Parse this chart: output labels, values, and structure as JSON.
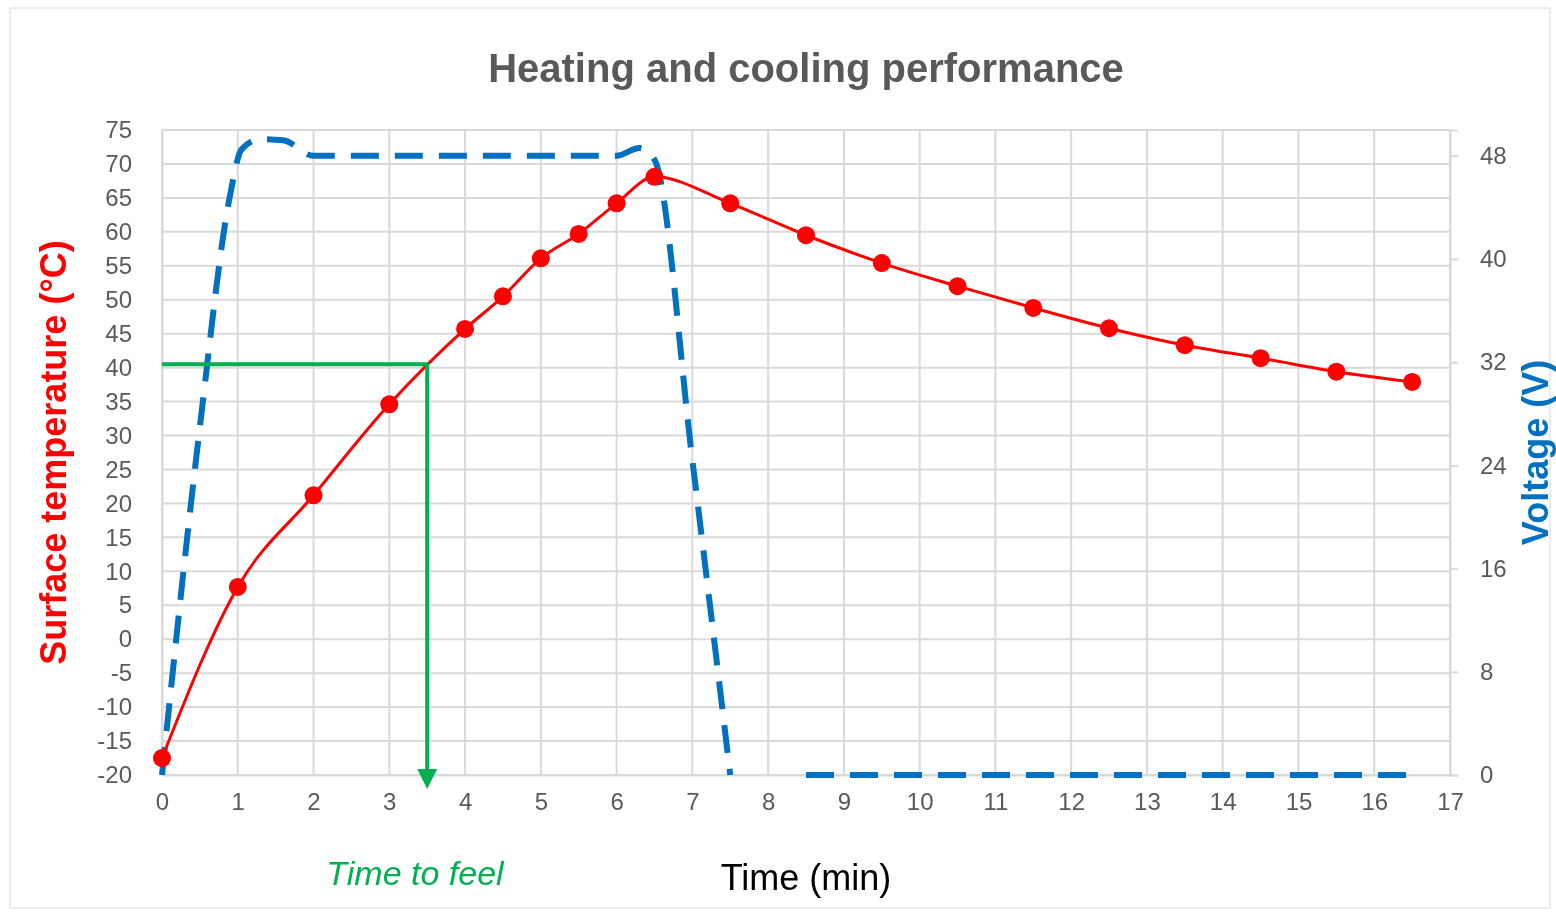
{
  "chart_data": {
    "type": "line",
    "title": "Heating and cooling performance",
    "xlabel": "Time (min)",
    "ylabel": "Surface temperature (°C)",
    "y2label": "Voltage (V)",
    "xlim": [
      0,
      17
    ],
    "xticks": [
      0,
      1,
      2,
      3,
      4,
      5,
      6,
      7,
      8,
      9,
      10,
      11,
      12,
      13,
      14,
      15,
      16,
      17
    ],
    "ylim": [
      -20,
      75
    ],
    "yticks": [
      -20,
      -15,
      -10,
      -5,
      0,
      5,
      10,
      15,
      20,
      25,
      30,
      35,
      40,
      45,
      50,
      55,
      60,
      65,
      70,
      75
    ],
    "y2lim": [
      0,
      50
    ],
    "y2ticks": [
      0,
      8,
      16,
      24,
      32,
      40,
      48
    ],
    "grid": true,
    "series": [
      {
        "color": "#0070c0",
        "axis": "y2",
        "marker": "none",
        "line_style": "dashed",
        "x": [
          0,
          0.5,
          0.9,
          1.05,
          1.3,
          1.6,
          2,
          3,
          4,
          5,
          6,
          6.3,
          6.5,
          7,
          7.5,
          8,
          8.5,
          16.5
        ],
        "values": [
          0,
          27,
          45,
          48.5,
          49.3,
          49.2,
          48,
          48,
          48,
          48,
          48,
          48.6,
          47.7,
          24.4,
          0,
          null,
          0,
          0
        ]
      },
      {
        "color": "#ff0000",
        "marker": "circle",
        "line_style": "solid",
        "x": [
          0,
          1,
          2,
          3,
          4,
          4.5,
          5,
          5.5,
          6,
          6.5,
          7.5,
          8.5,
          9.5,
          10.5,
          11.5,
          12.5,
          13.5,
          14.5,
          15.5,
          16.5
        ],
        "values": [
          -17.5,
          7.7,
          21.2,
          34.6,
          45.7,
          50.5,
          56.1,
          59.7,
          64.2,
          68.1,
          64.2,
          59.5,
          55.4,
          52,
          48.8,
          45.8,
          43.3,
          41.4,
          39.4,
          37.9
        ]
      },
      {
        "color": "#00b050",
        "marker": "none",
        "line_style": "solid",
        "x": [
          0,
          3.5,
          3.5
        ],
        "values": [
          40.5,
          40.5,
          -20
        ]
      }
    ],
    "annotations": [
      "Time to feel"
    ]
  }
}
